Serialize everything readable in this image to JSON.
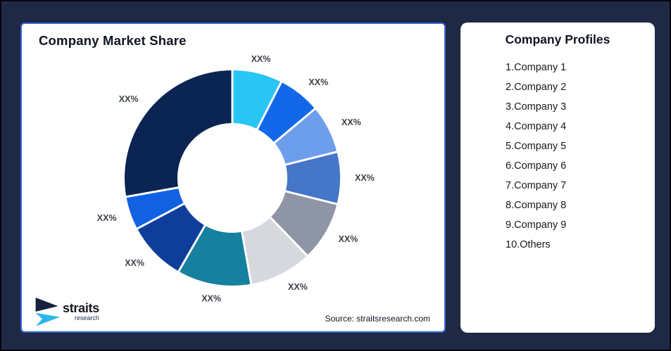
{
  "page": {
    "background_color": "#1F2945",
    "outer_border_color": "#05070d"
  },
  "left_card": {
    "title": "Company Market Share",
    "border_color": "#3465D6",
    "source": "Source: straitsresearch.com",
    "logo": {
      "name": "straits",
      "sub": "research",
      "navy": "#16213E",
      "cyan": "#29B7EA"
    }
  },
  "chart_data": {
    "type": "pie",
    "subtype": "donut",
    "title": "Company Market Share",
    "labels": [
      "XX%",
      "XX%",
      "XX%",
      "XX%",
      "XX%",
      "XX%",
      "XX%",
      "XX%",
      "XX%",
      "XX%"
    ],
    "values": [
      7.5,
      6.4,
      7.2,
      7.8,
      8.9,
      9.4,
      11.1,
      8.9,
      5.0,
      27.8
    ],
    "colors": [
      "#29C5F4",
      "#1268E9",
      "#6D9EEB",
      "#4676C8",
      "#8E96A5",
      "#D5D8DD",
      "#15819F",
      "#0E3E99",
      "#1261E3",
      "#0A2453"
    ],
    "label_color": "#3C4049",
    "start_angle_deg": 0,
    "clockwise": true,
    "donut_hole_ratio": 0.51,
    "legend": "none",
    "note": "Segment sizes estimated from pixels; every data label displays the placeholder XX%",
    "source": "Source: straitsresearch.com"
  },
  "profiles": {
    "title": "Company Profiles",
    "items": [
      "1.Company 1",
      "2.Company 2",
      "3.Company 3",
      "4.Company 4",
      "5.Company 5",
      "6.Company 6",
      "7.Company 7",
      "8.Company 8",
      "9.Company 9",
      "10.Others"
    ]
  }
}
